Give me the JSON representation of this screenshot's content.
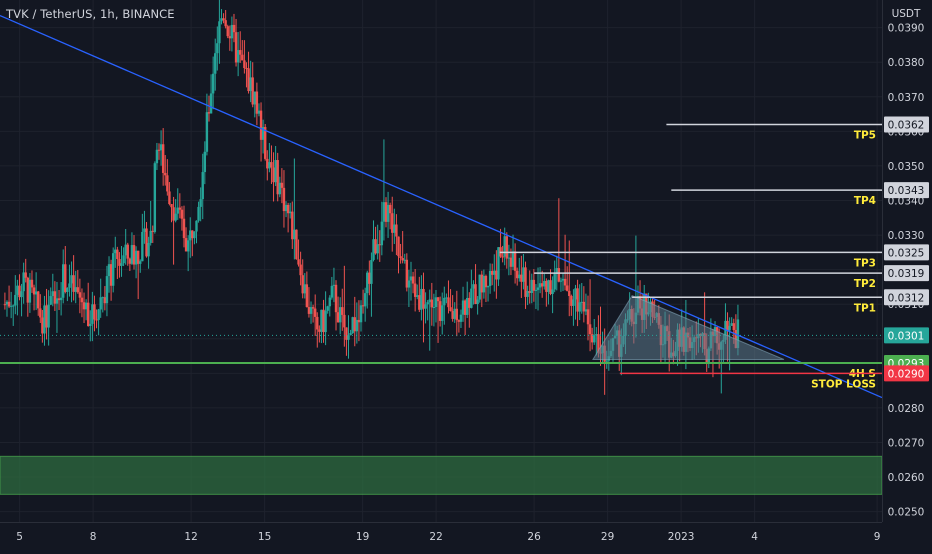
{
  "header": {
    "symbol": "TVK / TetherUS",
    "interval": "1h",
    "exchange": "BINANCE",
    "separator": ", "
  },
  "colors": {
    "background": "#131722",
    "grid": "#1e222d",
    "axis_text": "#d1d4dc",
    "candle_up": "#26a69a",
    "candle_down": "#ef5350",
    "trendline": "#2962ff",
    "support_line": "#4caf50",
    "stop_line": "#f23645",
    "target_line": "#d1d4dc",
    "label_yellow": "#ffeb3b",
    "zone_fill": "#2e6b3f",
    "triangle_fill": "#5d7a8c"
  },
  "chart_data": {
    "type": "candlestick",
    "quote_currency": "USDT",
    "ylim": [
      0.0247,
      0.0398
    ],
    "y_ticks": [
      "0.0250",
      "0.0260",
      "0.0270",
      "0.0280",
      "0.0290",
      "0.0300",
      "0.0310",
      "0.0320",
      "0.0330",
      "0.0340",
      "0.0350",
      "0.0360",
      "0.0370",
      "0.0380",
      "0.0390"
    ],
    "x_ticks": [
      {
        "label": "5",
        "t": 0.6
      },
      {
        "label": "8",
        "t": 3.6
      },
      {
        "label": "12",
        "t": 7.6
      },
      {
        "label": "15",
        "t": 10.6
      },
      {
        "label": "19",
        "t": 14.6
      },
      {
        "label": "22",
        "t": 17.6
      },
      {
        "label": "26",
        "t": 21.6
      },
      {
        "label": "29",
        "t": 24.6
      },
      {
        "label": "2023",
        "t": 27.6
      },
      {
        "label": "4",
        "t": 30.6
      },
      {
        "label": "9",
        "t": 35.6
      }
    ],
    "xlim": [
      -0.2,
      35.8
    ],
    "path_t": [
      0.0,
      0.8,
      1.6,
      2.4,
      3.0,
      3.6,
      4.5,
      5.4,
      6.0,
      6.2,
      6.8,
      7.5,
      8.0,
      8.6,
      8.9,
      9.2,
      9.6,
      10.2,
      10.6,
      11.2,
      11.8,
      12.3,
      12.7,
      13.0,
      13.4,
      13.8,
      14.6,
      15.0,
      15.6,
      16.2,
      16.8,
      17.4,
      18.2,
      19.0,
      19.8,
      20.4,
      20.8,
      21.3,
      21.8,
      22.4,
      23.0,
      23.6,
      24.2,
      24.6,
      25.0,
      25.6,
      26.2,
      26.8,
      27.4,
      28.0,
      28.6,
      29.2,
      29.6,
      30.0
    ],
    "path_p": [
      0.031,
      0.0316,
      0.0305,
      0.0318,
      0.0312,
      0.0306,
      0.0322,
      0.0325,
      0.033,
      0.0358,
      0.034,
      0.0327,
      0.0345,
      0.0385,
      0.0395,
      0.0388,
      0.038,
      0.037,
      0.0355,
      0.0345,
      0.033,
      0.0312,
      0.0302,
      0.0305,
      0.0313,
      0.0303,
      0.0306,
      0.0325,
      0.0338,
      0.032,
      0.0313,
      0.031,
      0.0307,
      0.0312,
      0.0318,
      0.0326,
      0.032,
      0.0315,
      0.0314,
      0.0318,
      0.0315,
      0.0308,
      0.03,
      0.0296,
      0.0298,
      0.0306,
      0.0311,
      0.03,
      0.0298,
      0.0301,
      0.0297,
      0.03,
      0.0302,
      0.0301
    ],
    "annotations": [
      {
        "kind": "trendline",
        "label": "",
        "start": {
          "t": -0.2,
          "p": 0.03935
        },
        "end": {
          "t": 35.8,
          "p": 0.0283
        }
      },
      {
        "kind": "hline",
        "label": "4H S",
        "price": 0.0293,
        "badge": "0.0293",
        "from_t": -0.2,
        "to_t": 35.6,
        "style": "support"
      },
      {
        "kind": "hline",
        "label": "STOP LOSS",
        "price": 0.029,
        "badge": "0.0290",
        "from_t": 25.1,
        "to_t": 35.6,
        "style": "stop"
      },
      {
        "kind": "hline",
        "label": "TP1",
        "price": 0.0312,
        "badge": "0.0312",
        "from_t": 25.6,
        "to_t": 35.6,
        "style": "target"
      },
      {
        "kind": "hline",
        "label": "TP2",
        "price": 0.0319,
        "badge": "0.0319",
        "from_t": 21.6,
        "to_t": 35.6,
        "style": "target"
      },
      {
        "kind": "hline",
        "label": "TP3",
        "price": 0.0325,
        "badge": "0.0325",
        "from_t": 20.2,
        "to_t": 35.6,
        "style": "target"
      },
      {
        "kind": "hline",
        "label": "TP4",
        "price": 0.0343,
        "badge": "0.0343",
        "from_t": 27.2,
        "to_t": 35.6,
        "style": "target"
      },
      {
        "kind": "hline",
        "label": "TP5",
        "price": 0.0362,
        "badge": "0.0362",
        "from_t": 27.0,
        "to_t": 35.6,
        "style": "target"
      }
    ],
    "current_price": "0.0301",
    "zone": {
      "from_price": 0.0255,
      "to_price": 0.0266
    },
    "triangle": [
      {
        "t": 24.0,
        "p": 0.0294
      },
      {
        "t": 25.6,
        "p": 0.03125
      },
      {
        "t": 31.8,
        "p": 0.0294
      }
    ]
  }
}
